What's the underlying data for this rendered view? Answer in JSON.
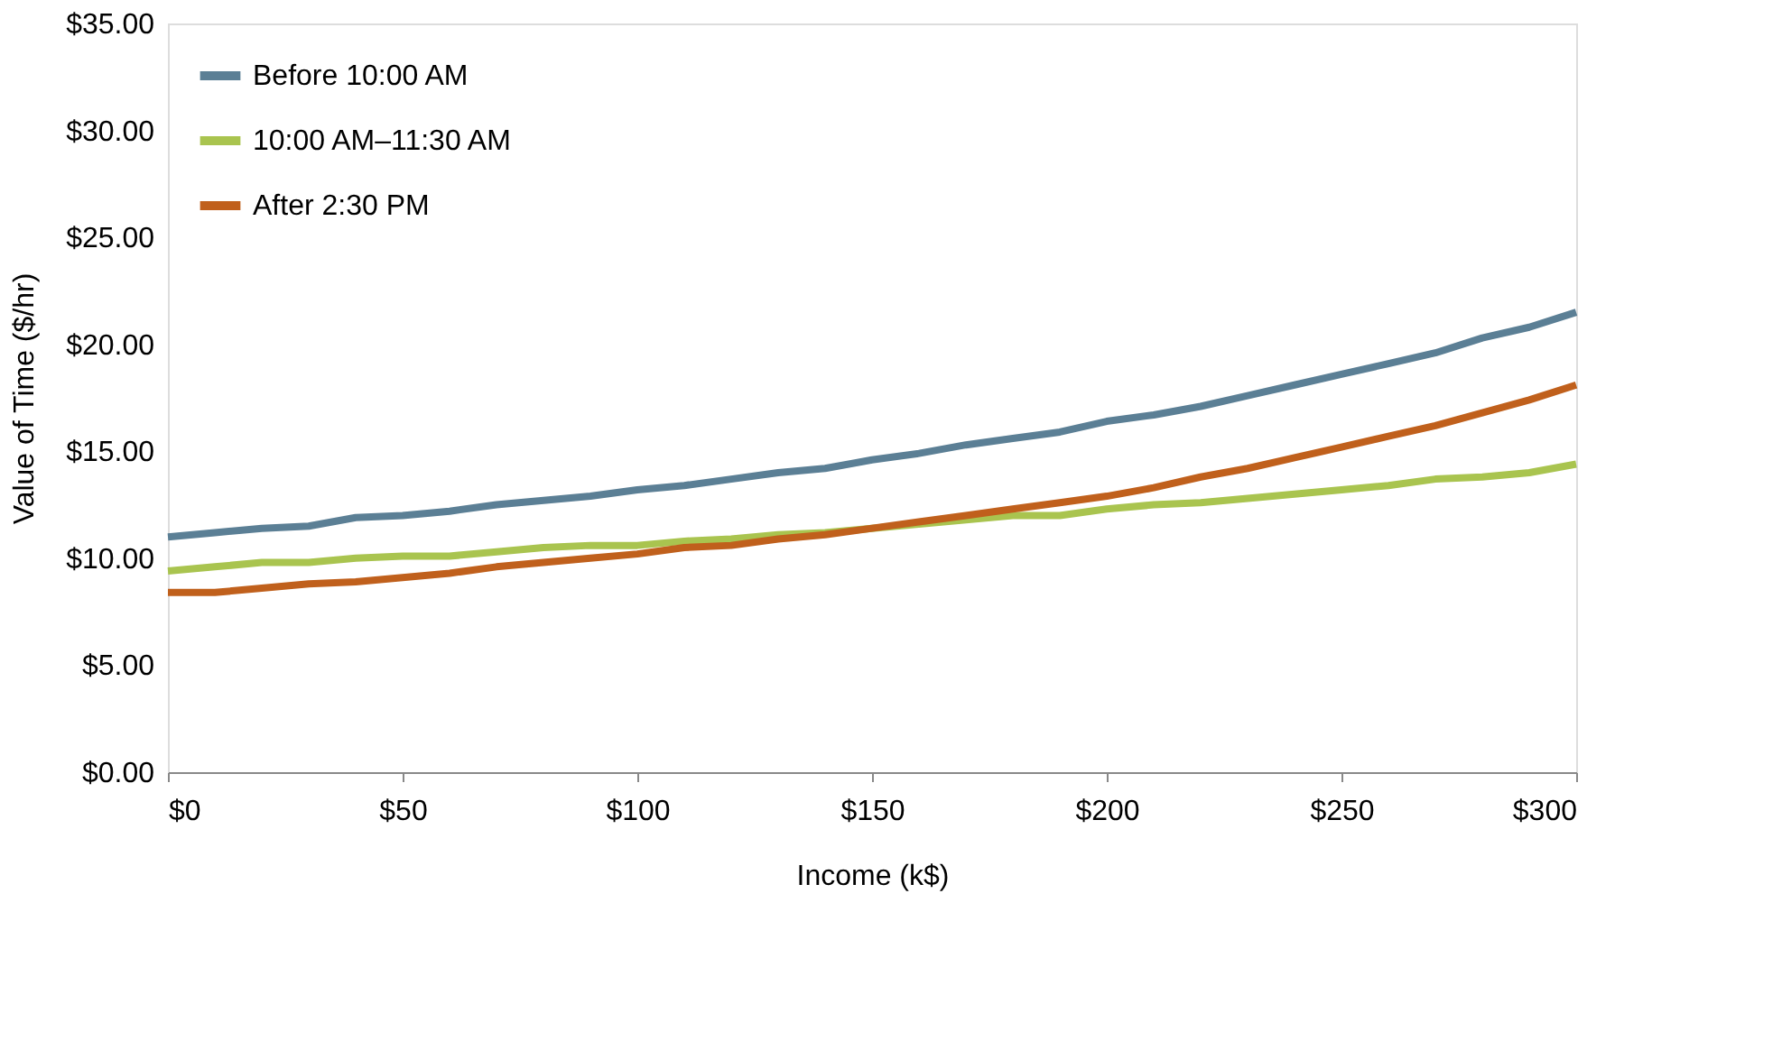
{
  "chart_data": {
    "type": "line",
    "xlabel": "Income (k$)",
    "ylabel": "Value of Time ($/hr)",
    "x": [
      0,
      10,
      20,
      30,
      40,
      50,
      60,
      70,
      80,
      90,
      100,
      110,
      120,
      130,
      140,
      150,
      160,
      170,
      180,
      190,
      200,
      210,
      220,
      230,
      240,
      250,
      260,
      270,
      280,
      290,
      300
    ],
    "series": [
      {
        "name": "Before 10:00 AM",
        "color": "#5b7f95",
        "values": [
          11.0,
          11.2,
          11.4,
          11.5,
          11.9,
          12.0,
          12.2,
          12.5,
          12.7,
          12.9,
          13.2,
          13.4,
          13.7,
          14.0,
          14.2,
          14.6,
          14.9,
          15.3,
          15.6,
          15.9,
          16.4,
          16.7,
          17.1,
          17.6,
          18.1,
          18.6,
          19.1,
          19.6,
          20.3,
          20.8,
          21.5
        ]
      },
      {
        "name": "10:00 AM–11:30 AM",
        "color": "#a9c44f",
        "values": [
          9.4,
          9.6,
          9.8,
          9.8,
          10.0,
          10.1,
          10.1,
          10.3,
          10.5,
          10.6,
          10.6,
          10.8,
          10.9,
          11.1,
          11.2,
          11.4,
          11.6,
          11.8,
          12.0,
          12.0,
          12.3,
          12.5,
          12.6,
          12.8,
          13.0,
          13.2,
          13.4,
          13.7,
          13.8,
          14.0,
          14.4
        ]
      },
      {
        "name": "After 2:30 PM",
        "color": "#c0601c",
        "values": [
          8.4,
          8.4,
          8.6,
          8.8,
          8.9,
          9.1,
          9.3,
          9.6,
          9.8,
          10.0,
          10.2,
          10.5,
          10.6,
          10.9,
          11.1,
          11.4,
          11.7,
          12.0,
          12.3,
          12.6,
          12.9,
          13.3,
          13.8,
          14.2,
          14.7,
          15.2,
          15.7,
          16.2,
          16.8,
          17.4,
          18.1
        ]
      }
    ],
    "xlim": [
      0,
      300
    ],
    "xticks": [
      {
        "value": 0,
        "label": "$0"
      },
      {
        "value": 50,
        "label": "$50"
      },
      {
        "value": 100,
        "label": "$100"
      },
      {
        "value": 150,
        "label": "$150"
      },
      {
        "value": 200,
        "label": "$200"
      },
      {
        "value": 250,
        "label": "$250"
      },
      {
        "value": 300,
        "label": "$300"
      }
    ],
    "ylim": [
      0,
      35
    ],
    "yticks": [
      {
        "value": 0,
        "label": "$0.00"
      },
      {
        "value": 5,
        "label": "$5.00"
      },
      {
        "value": 10,
        "label": "$10.00"
      },
      {
        "value": 15,
        "label": "$15.00"
      },
      {
        "value": 20,
        "label": "$20.00"
      },
      {
        "value": 25,
        "label": "$25.00"
      },
      {
        "value": 30,
        "label": "$30.00"
      },
      {
        "value": 35,
        "label": "$35.00"
      }
    ],
    "grid": false,
    "legend": "top left",
    "marker": "none",
    "line_style": "solid"
  }
}
